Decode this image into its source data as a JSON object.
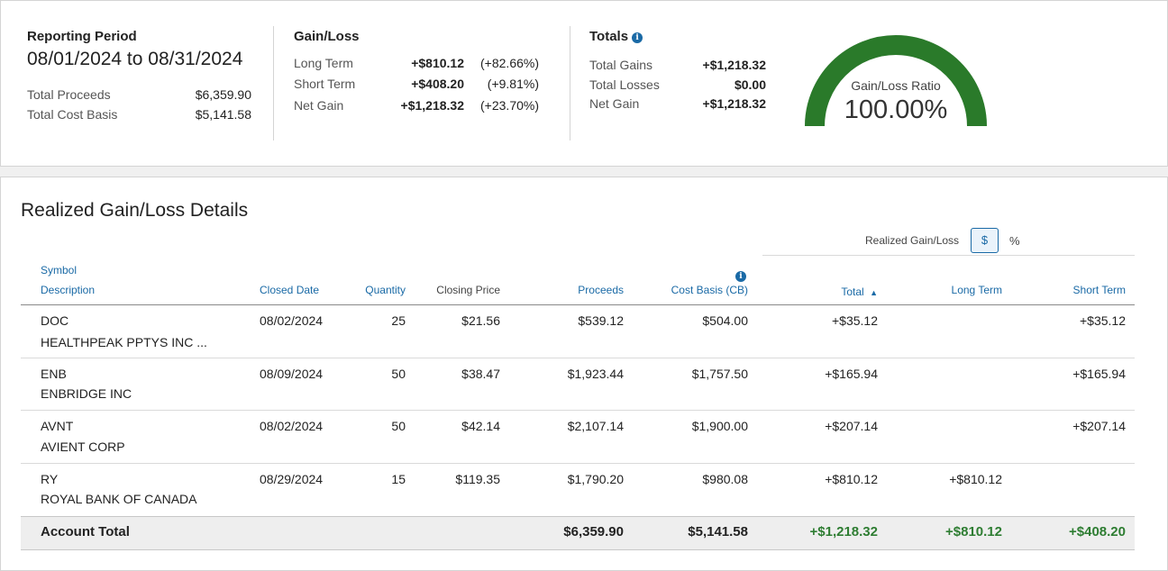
{
  "summary": {
    "reporting": {
      "title": "Reporting Period",
      "period": "08/01/2024 to 08/31/2024",
      "total_proceeds_label": "Total Proceeds",
      "total_proceeds": "$6,359.90",
      "total_cost_basis_label": "Total Cost Basis",
      "total_cost_basis": "$5,141.58"
    },
    "gain_loss": {
      "title": "Gain/Loss",
      "rows": [
        {
          "label": "Long Term",
          "amount": "+$810.12",
          "pct": "(+82.66%)"
        },
        {
          "label": "Short Term",
          "amount": "+$408.20",
          "pct": "(+9.81%)"
        },
        {
          "label": "Net Gain",
          "amount": "+$1,218.32",
          "pct": "(+23.70%)"
        }
      ]
    },
    "totals": {
      "title": "Totals",
      "info_icon": "info-icon",
      "rows": [
        {
          "label": "Total Gains",
          "amount": "+$1,218.32"
        },
        {
          "label": "Total Losses",
          "amount": "$0.00"
        },
        {
          "label": "Net Gain",
          "amount": "+$1,218.32"
        }
      ]
    },
    "gauge": {
      "label": "Gain/Loss Ratio",
      "value_text": "100.00%",
      "ratio": 1.0,
      "color": "#2a7a2a"
    }
  },
  "details": {
    "title": "Realized Gain/Loss Details",
    "toggle_label": "Realized Gain/Loss",
    "toggle_dollar": "$",
    "toggle_percent": "%",
    "columns": {
      "symbol": "Symbol",
      "description": "Description",
      "closed_date": "Closed Date",
      "quantity": "Quantity",
      "closing_price": "Closing Price",
      "proceeds": "Proceeds",
      "cost_basis": "Cost Basis (CB)",
      "total": "Total",
      "long_term": "Long Term",
      "short_term": "Short Term"
    },
    "rows": [
      {
        "symbol": "DOC",
        "description": "HEALTHPEAK PPTYS INC ...",
        "closed_date": "08/02/2024",
        "quantity": "25",
        "closing_price": "$21.56",
        "proceeds": "$539.12",
        "cost_basis": "$504.00",
        "total": "+$35.12",
        "long_term": "",
        "short_term": "+$35.12"
      },
      {
        "symbol": "ENB",
        "description": "ENBRIDGE INC",
        "closed_date": "08/09/2024",
        "quantity": "50",
        "closing_price": "$38.47",
        "proceeds": "$1,923.44",
        "cost_basis": "$1,757.50",
        "total": "+$165.94",
        "long_term": "",
        "short_term": "+$165.94"
      },
      {
        "symbol": "AVNT",
        "description": "AVIENT CORP",
        "closed_date": "08/02/2024",
        "quantity": "50",
        "closing_price": "$42.14",
        "proceeds": "$2,107.14",
        "cost_basis": "$1,900.00",
        "total": "+$207.14",
        "long_term": "",
        "short_term": "+$207.14"
      },
      {
        "symbol": "RY",
        "description": "ROYAL BANK OF CANADA",
        "closed_date": "08/29/2024",
        "quantity": "15",
        "closing_price": "$119.35",
        "proceeds": "$1,790.20",
        "cost_basis": "$980.08",
        "total": "+$810.12",
        "long_term": "+$810.12",
        "short_term": ""
      }
    ],
    "account_total": {
      "label": "Account Total",
      "proceeds": "$6,359.90",
      "cost_basis": "$5,141.58",
      "total": "+$1,218.32",
      "long_term": "+$810.12",
      "short_term": "+$408.20"
    }
  }
}
